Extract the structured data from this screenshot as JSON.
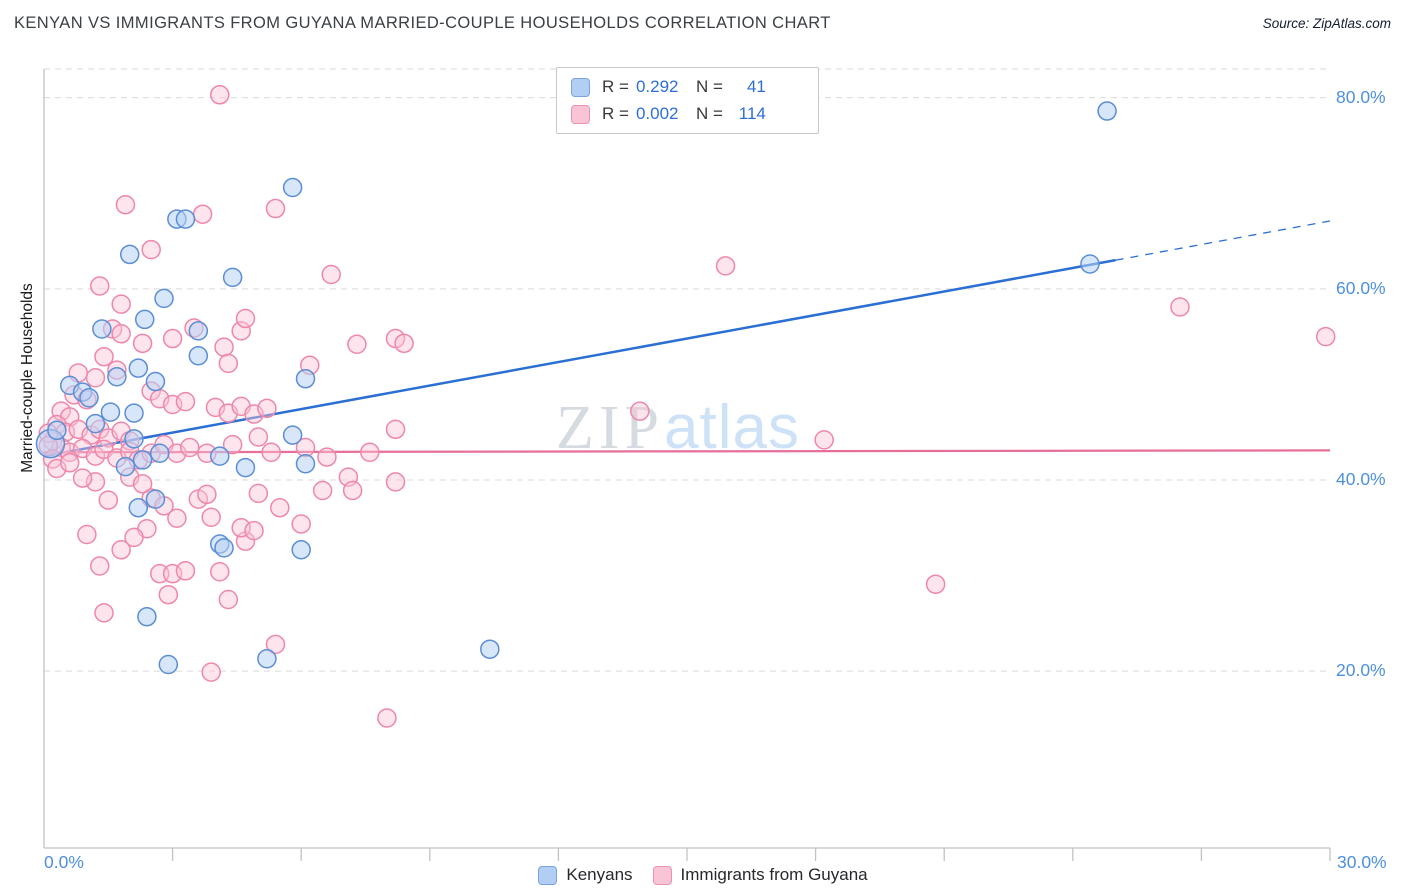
{
  "header": {
    "title": "KENYAN VS IMMIGRANTS FROM GUYANA MARRIED-COUPLE HOUSEHOLDS CORRELATION CHART",
    "source": "Source: ZipAtlas.com"
  },
  "watermark": {
    "zip": "ZIP",
    "atlas": "atlas"
  },
  "axes": {
    "y_label": "Married-couple Households",
    "x_min_label": "0.0%",
    "x_max_label": "30.0%",
    "y_tick_labels": [
      "80.0%",
      "60.0%",
      "40.0%",
      "20.0%"
    ]
  },
  "legend_box": {
    "rows": [
      {
        "r_label": "R =",
        "n_label": "N ="
      },
      {
        "r_label": "R =",
        "n_label": "N ="
      }
    ]
  },
  "colors": {
    "axis": "#c2c2c2",
    "gridline": "#d9d9d9",
    "tick_label_blue": "#4d90dd",
    "kenyans_stroke": "#5b8ed6",
    "kenyans_fill": "#b8d2f4",
    "guyana_stroke": "#ef87aa",
    "guyana_fill": "#fac4d6",
    "trend_blue": "#2b6fd4",
    "trend_pink": "#e76e9b"
  },
  "chart_data": {
    "type": "scatter",
    "title": "KENYAN VS IMMIGRANTS FROM GUYANA MARRIED-COUPLE HOUSEHOLDS CORRELATION CHART",
    "xlabel": "",
    "ylabel": "Married-couple Households",
    "xlim": [
      0,
      30
    ],
    "ylim": [
      1.5,
      83
    ],
    "x_ticks": [
      0,
      3,
      6,
      9,
      12,
      15,
      18,
      21,
      24,
      27,
      30
    ],
    "y_gridlines": [
      20,
      40,
      60,
      80
    ],
    "grid": "dashed-horizontal",
    "legend_position": "top-center and bottom-center",
    "units": "percent",
    "series": [
      {
        "id": "kenyans",
        "name": "Kenyans",
        "R": "0.292",
        "N": "41",
        "color": "#5b8ed6",
        "fill": "#b8d2f4",
        "fill_opacity": 0.55,
        "points": [
          [
            0.15,
            43.8,
            14
          ],
          [
            0.3,
            45.2
          ],
          [
            0.6,
            49.9
          ],
          [
            0.9,
            49.2
          ],
          [
            1.05,
            48.6
          ],
          [
            1.2,
            45.9
          ],
          [
            1.35,
            55.8
          ],
          [
            1.55,
            47.1
          ],
          [
            1.7,
            50.8
          ],
          [
            1.9,
            41.4
          ],
          [
            2.0,
            63.6
          ],
          [
            2.1,
            44.3
          ],
          [
            2.1,
            47.0
          ],
          [
            2.2,
            51.7
          ],
          [
            2.2,
            37.1
          ],
          [
            2.3,
            42.1
          ],
          [
            2.35,
            56.8
          ],
          [
            2.4,
            25.7
          ],
          [
            2.6,
            50.3
          ],
          [
            2.6,
            38.0
          ],
          [
            2.7,
            42.8
          ],
          [
            2.8,
            59.0
          ],
          [
            2.9,
            20.7
          ],
          [
            3.1,
            67.3
          ],
          [
            3.3,
            67.3
          ],
          [
            3.6,
            53.0
          ],
          [
            3.6,
            55.6
          ],
          [
            4.1,
            42.5
          ],
          [
            4.1,
            33.3
          ],
          [
            4.2,
            32.9
          ],
          [
            4.4,
            61.2
          ],
          [
            4.7,
            41.3
          ],
          [
            5.2,
            21.3
          ],
          [
            5.8,
            70.6
          ],
          [
            5.8,
            44.7
          ],
          [
            6.0,
            32.7
          ],
          [
            6.1,
            50.6
          ],
          [
            6.1,
            41.7
          ],
          [
            10.4,
            22.3
          ],
          [
            24.4,
            62.6
          ],
          [
            24.8,
            78.6
          ]
        ]
      },
      {
        "id": "guyana",
        "name": "Immigrants from Guyana",
        "R": "0.002",
        "N": "114",
        "color": "#ef87aa",
        "fill": "#fac4d6",
        "fill_opacity": 0.45,
        "points": [
          [
            4.1,
            80.3
          ],
          [
            1.9,
            68.8
          ],
          [
            3.7,
            67.8
          ],
          [
            5.4,
            68.4
          ],
          [
            2.5,
            64.1
          ],
          [
            1.3,
            60.3
          ],
          [
            1.8,
            58.4
          ],
          [
            6.7,
            61.5
          ],
          [
            15.9,
            62.4
          ],
          [
            26.5,
            58.1
          ],
          [
            29.9,
            55.0
          ],
          [
            1.6,
            55.8
          ],
          [
            1.8,
            55.3
          ],
          [
            1.4,
            52.9
          ],
          [
            2.3,
            54.3
          ],
          [
            3.0,
            54.8
          ],
          [
            4.2,
            53.9
          ],
          [
            4.3,
            52.2
          ],
          [
            3.5,
            55.9
          ],
          [
            4.6,
            55.6
          ],
          [
            7.3,
            54.2
          ],
          [
            8.2,
            54.8
          ],
          [
            8.4,
            54.3
          ],
          [
            6.2,
            52.0
          ],
          [
            4.7,
            56.9
          ],
          [
            13.9,
            47.2
          ],
          [
            18.2,
            44.2
          ],
          [
            0.7,
            48.9
          ],
          [
            1.0,
            48.4
          ],
          [
            0.4,
            47.2
          ],
          [
            0.6,
            46.6
          ],
          [
            0.3,
            45.8
          ],
          [
            0.5,
            45.0
          ],
          [
            0.8,
            45.3
          ],
          [
            1.1,
            44.7
          ],
          [
            1.3,
            45.3
          ],
          [
            1.5,
            44.4
          ],
          [
            1.8,
            45.1
          ],
          [
            2.0,
            44.1
          ],
          [
            0.2,
            44.1
          ],
          [
            0.4,
            43.4
          ],
          [
            0.6,
            42.9
          ],
          [
            0.9,
            43.3
          ],
          [
            1.2,
            42.5
          ],
          [
            1.4,
            43.2
          ],
          [
            1.7,
            42.3
          ],
          [
            2.0,
            43.0
          ],
          [
            2.2,
            42.1
          ],
          [
            2.5,
            42.8
          ],
          [
            2.8,
            43.7
          ],
          [
            3.1,
            42.8
          ],
          [
            3.4,
            43.4
          ],
          [
            3.8,
            42.8
          ],
          [
            5.0,
            44.5
          ],
          [
            5.3,
            42.9
          ],
          [
            4.4,
            43.7
          ],
          [
            7.6,
            42.9
          ],
          [
            8.2,
            45.3
          ],
          [
            2.5,
            49.3
          ],
          [
            2.7,
            48.5
          ],
          [
            3.0,
            47.9
          ],
          [
            3.3,
            48.2
          ],
          [
            4.0,
            47.6
          ],
          [
            4.3,
            47.0
          ],
          [
            4.6,
            47.7
          ],
          [
            4.9,
            46.9
          ],
          [
            5.2,
            47.5
          ],
          [
            0.1,
            44.9
          ],
          [
            0.1,
            43.6
          ],
          [
            0.2,
            42.2
          ],
          [
            0.3,
            41.2
          ],
          [
            0.6,
            41.8
          ],
          [
            7.1,
            40.3
          ],
          [
            5.0,
            38.6
          ],
          [
            6.5,
            38.9
          ],
          [
            7.2,
            38.9
          ],
          [
            5.5,
            37.1
          ],
          [
            6.0,
            35.4
          ],
          [
            3.6,
            38.0
          ],
          [
            3.8,
            38.5
          ],
          [
            2.5,
            38.1
          ],
          [
            2.8,
            37.3
          ],
          [
            3.1,
            36.0
          ],
          [
            3.9,
            36.1
          ],
          [
            1.2,
            39.8
          ],
          [
            0.9,
            40.2
          ],
          [
            1.5,
            37.9
          ],
          [
            2.4,
            34.9
          ],
          [
            2.1,
            34.0
          ],
          [
            1.0,
            34.3
          ],
          [
            1.8,
            32.7
          ],
          [
            1.3,
            31.0
          ],
          [
            2.7,
            30.2
          ],
          [
            3.0,
            30.2
          ],
          [
            3.3,
            30.5
          ],
          [
            4.1,
            30.4
          ],
          [
            4.3,
            27.5
          ],
          [
            2.9,
            28.0
          ],
          [
            1.4,
            26.1
          ],
          [
            20.8,
            29.1
          ],
          [
            3.9,
            19.9
          ],
          [
            5.4,
            22.8
          ],
          [
            8.0,
            15.1
          ],
          [
            4.7,
            33.6
          ],
          [
            4.6,
            35.0
          ],
          [
            4.9,
            34.7
          ],
          [
            8.2,
            39.8
          ],
          [
            6.6,
            42.4
          ],
          [
            6.1,
            43.4
          ],
          [
            2.0,
            40.3
          ],
          [
            2.3,
            39.6
          ],
          [
            1.2,
            50.7
          ],
          [
            0.8,
            51.2
          ],
          [
            1.7,
            51.5
          ]
        ]
      }
    ],
    "trend_lines": [
      {
        "series": "Kenyans",
        "color": "#2b6fd4",
        "width": 2.5,
        "solid": [
          [
            0,
            42.5
          ],
          [
            25,
            63.0
          ]
        ],
        "dashed": [
          [
            25,
            63.0
          ],
          [
            30,
            67.1
          ]
        ]
      },
      {
        "series": "Immigrants from Guyana",
        "color": "#e76e9b",
        "width": 2.2,
        "solid": [
          [
            0,
            42.9
          ],
          [
            30,
            43.1
          ]
        ]
      }
    ]
  }
}
